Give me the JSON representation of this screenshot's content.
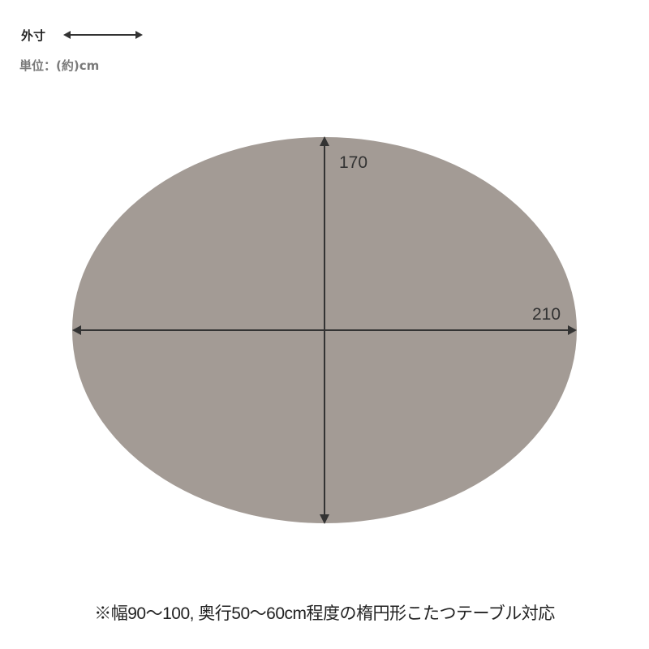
{
  "legend": {
    "label": "外寸",
    "arrow_icon": "double-arrow-icon"
  },
  "unit": "単位：(約)cm",
  "diagram": {
    "shape": "ellipse",
    "fill_color": "#a39b95",
    "line_color": "#333333",
    "height_label": "170",
    "width_label": "210"
  },
  "note": "※幅90〜100, 奥行50〜60cm程度の楕円形こたつテーブル対応"
}
